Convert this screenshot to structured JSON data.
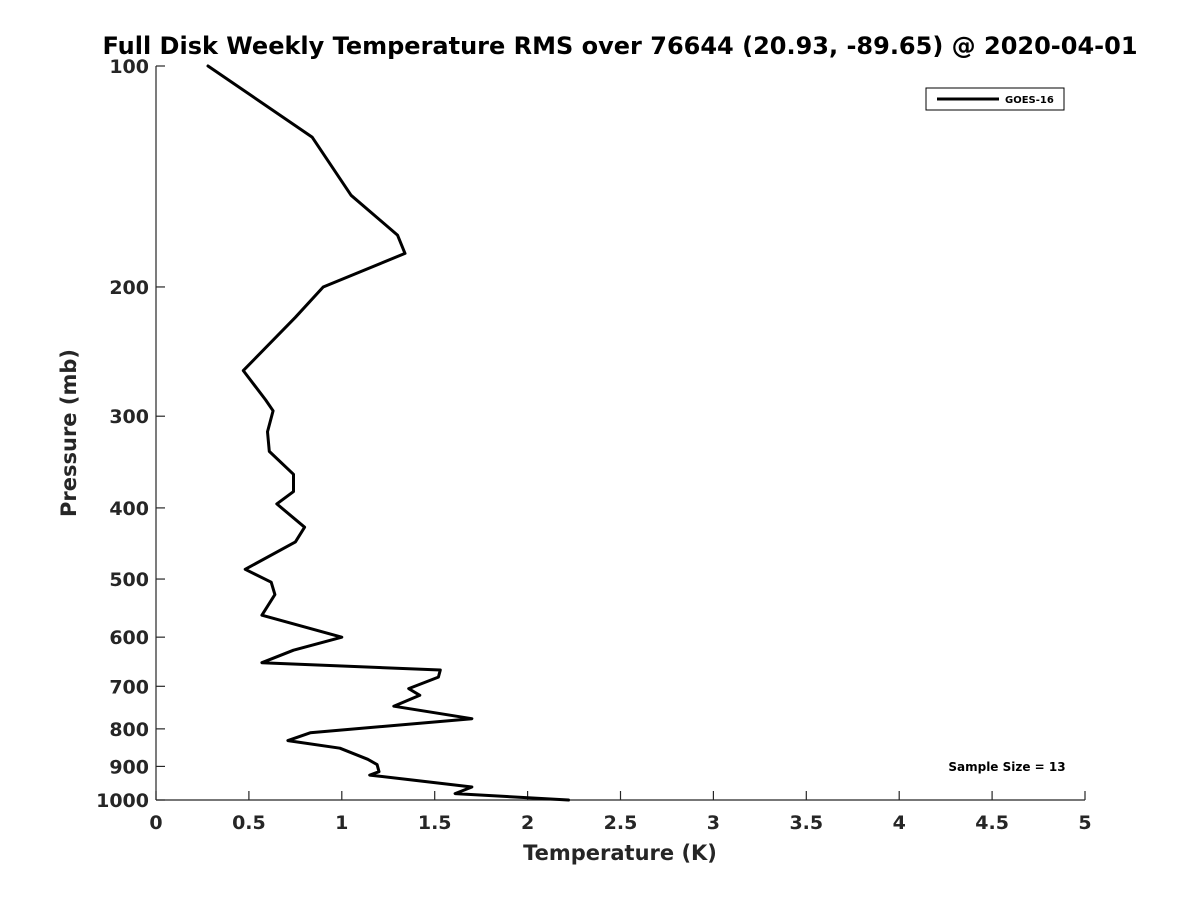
{
  "chart_data": {
    "type": "line",
    "title": "Full Disk Weekly Temperature RMS over 76644 (20.93, -89.65) @ 2020-04-01",
    "xlabel": "Temperature (K)",
    "ylabel": "Pressure (mb)",
    "xlim": [
      0,
      5
    ],
    "ylim": [
      100,
      1000
    ],
    "y_scale": "log",
    "y_reversed": true,
    "grid": false,
    "legend_position": "top-right",
    "x_ticks": [
      "0",
      "0.5",
      "1",
      "1.5",
      "2",
      "2.5",
      "3",
      "3.5",
      "4",
      "4.5",
      "5"
    ],
    "y_ticks": [
      "100",
      "200",
      "300",
      "400",
      "500",
      "600",
      "700",
      "800",
      "900",
      "1000"
    ],
    "series": [
      {
        "name": "GOES-16",
        "color": "#000000",
        "x": [
          0.28,
          0.84,
          1.05,
          1.3,
          1.34,
          0.9,
          0.75,
          0.47,
          0.59,
          0.63,
          0.6,
          0.61,
          0.74,
          0.74,
          0.65,
          0.8,
          0.75,
          0.48,
          0.62,
          0.64,
          0.57,
          1.0,
          0.74,
          0.57,
          1.53,
          1.52,
          1.36,
          1.42,
          1.28,
          1.7,
          0.83,
          0.71,
          0.99,
          1.14,
          1.19,
          1.2,
          1.15,
          1.39,
          1.7,
          1.61,
          2.22
        ],
        "y": [
          100,
          125,
          150,
          170,
          180,
          200,
          220,
          260,
          285,
          295,
          315,
          335,
          360,
          380,
          395,
          425,
          445,
          485,
          505,
          525,
          560,
          600,
          625,
          650,
          665,
          680,
          705,
          720,
          745,
          775,
          810,
          830,
          850,
          880,
          895,
          915,
          925,
          940,
          960,
          980,
          1000
        ]
      }
    ],
    "annotations": [
      "Sample Size = 13"
    ]
  }
}
